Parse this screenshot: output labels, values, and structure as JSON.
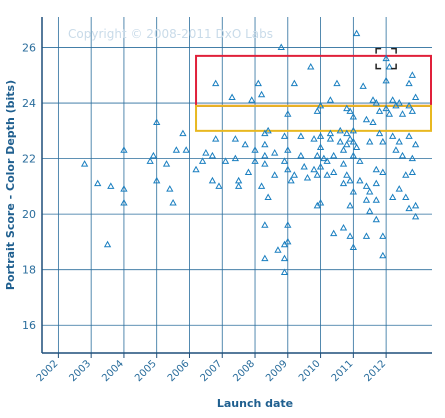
{
  "watermark": "Copyright © 2008-2011 DxO Labs",
  "colors": {
    "background": "#ffffff",
    "grid": "#2a6d9c",
    "marker": "#1a7fc0",
    "axis": "#1f4f7a",
    "highlight_red": "#e0203a",
    "highlight_yellow": "#e8b820",
    "selection_box": "#222222"
  },
  "chart_data": {
    "type": "scatter",
    "title": "",
    "xlabel": "Launch date",
    "ylabel": "Portrait Score - Color Depth (bits)",
    "x_tick_labels": [
      "2002",
      "2003",
      "2004",
      "2005",
      "2006",
      "2007",
      "2008",
      "2009",
      "2010",
      "2011",
      "2012"
    ],
    "y_tick_labels": [
      "16",
      "18",
      "20",
      "22",
      "24",
      "26"
    ],
    "xlim": [
      2001.5,
      2013.4
    ],
    "ylim": [
      15,
      27.1
    ],
    "grid": true,
    "marker": "open-triangle",
    "points": [
      [
        2002.8,
        21.8
      ],
      [
        2003.2,
        21.1
      ],
      [
        2003.5,
        18.9
      ],
      [
        2003.6,
        21.0
      ],
      [
        2004.0,
        22.3
      ],
      [
        2004.0,
        20.9
      ],
      [
        2004.0,
        20.4
      ],
      [
        2004.8,
        21.9
      ],
      [
        2004.9,
        22.1
      ],
      [
        2005.0,
        23.3
      ],
      [
        2005.0,
        21.2
      ],
      [
        2005.3,
        21.8
      ],
      [
        2005.4,
        20.9
      ],
      [
        2005.5,
        20.4
      ],
      [
        2005.6,
        22.3
      ],
      [
        2005.8,
        22.9
      ],
      [
        2005.9,
        22.3
      ],
      [
        2006.2,
        21.6
      ],
      [
        2006.4,
        21.9
      ],
      [
        2006.5,
        22.2
      ],
      [
        2006.7,
        22.1
      ],
      [
        2006.7,
        21.2
      ],
      [
        2006.8,
        24.7
      ],
      [
        2006.8,
        22.7
      ],
      [
        2006.9,
        21.0
      ],
      [
        2007.1,
        21.9
      ],
      [
        2007.3,
        24.2
      ],
      [
        2007.4,
        22.7
      ],
      [
        2007.4,
        22.0
      ],
      [
        2007.5,
        21.2
      ],
      [
        2007.5,
        21.0
      ],
      [
        2007.7,
        22.5
      ],
      [
        2007.8,
        21.5
      ],
      [
        2007.9,
        24.1
      ],
      [
        2008.0,
        22.3
      ],
      [
        2008.0,
        21.9
      ],
      [
        2008.1,
        24.7
      ],
      [
        2008.2,
        24.3
      ],
      [
        2008.2,
        21.0
      ],
      [
        2008.3,
        22.9
      ],
      [
        2008.3,
        22.5
      ],
      [
        2008.3,
        22.1
      ],
      [
        2008.3,
        21.8
      ],
      [
        2008.3,
        19.6
      ],
      [
        2008.3,
        18.4
      ],
      [
        2008.4,
        23.0
      ],
      [
        2008.4,
        20.6
      ],
      [
        2008.6,
        22.2
      ],
      [
        2008.6,
        21.4
      ],
      [
        2008.7,
        18.7
      ],
      [
        2008.8,
        26.0
      ],
      [
        2008.9,
        22.8
      ],
      [
        2008.9,
        21.9
      ],
      [
        2008.9,
        18.9
      ],
      [
        2008.9,
        18.4
      ],
      [
        2008.9,
        17.9
      ],
      [
        2009.0,
        23.6
      ],
      [
        2009.0,
        22.3
      ],
      [
        2009.0,
        21.6
      ],
      [
        2009.0,
        19.6
      ],
      [
        2009.0,
        19.0
      ],
      [
        2009.1,
        21.2
      ],
      [
        2009.2,
        24.7
      ],
      [
        2009.2,
        21.4
      ],
      [
        2009.4,
        22.8
      ],
      [
        2009.4,
        22.1
      ],
      [
        2009.5,
        21.7
      ],
      [
        2009.6,
        21.3
      ],
      [
        2009.7,
        25.3
      ],
      [
        2009.8,
        22.7
      ],
      [
        2009.8,
        21.6
      ],
      [
        2009.9,
        23.7
      ],
      [
        2009.9,
        22.1
      ],
      [
        2009.9,
        21.4
      ],
      [
        2009.9,
        20.3
      ],
      [
        2010.0,
        23.9
      ],
      [
        2010.0,
        22.8
      ],
      [
        2010.0,
        22.4
      ],
      [
        2010.0,
        21.7
      ],
      [
        2010.0,
        20.4
      ],
      [
        2010.1,
        22.0
      ],
      [
        2010.2,
        21.9
      ],
      [
        2010.2,
        21.4
      ],
      [
        2010.3,
        24.1
      ],
      [
        2010.3,
        22.9
      ],
      [
        2010.3,
        22.7
      ],
      [
        2010.4,
        22.1
      ],
      [
        2010.4,
        21.5
      ],
      [
        2010.4,
        19.3
      ],
      [
        2010.5,
        24.7
      ],
      [
        2010.6,
        23.0
      ],
      [
        2010.6,
        22.6
      ],
      [
        2010.7,
        22.3
      ],
      [
        2010.7,
        21.8
      ],
      [
        2010.7,
        21.1
      ],
      [
        2010.7,
        19.5
      ],
      [
        2010.8,
        23.8
      ],
      [
        2010.8,
        22.9
      ],
      [
        2010.8,
        22.5
      ],
      [
        2010.8,
        21.4
      ],
      [
        2010.9,
        23.7
      ],
      [
        2010.9,
        22.7
      ],
      [
        2010.9,
        21.2
      ],
      [
        2010.9,
        20.3
      ],
      [
        2010.9,
        19.2
      ],
      [
        2011.0,
        23.5
      ],
      [
        2011.0,
        23.0
      ],
      [
        2011.0,
        22.6
      ],
      [
        2011.0,
        22.1
      ],
      [
        2011.0,
        20.8
      ],
      [
        2011.0,
        18.8
      ],
      [
        2011.1,
        26.5
      ],
      [
        2011.1,
        22.4
      ],
      [
        2011.2,
        21.9
      ],
      [
        2011.2,
        21.2
      ],
      [
        2011.3,
        24.6
      ],
      [
        2011.4,
        23.4
      ],
      [
        2011.4,
        21.0
      ],
      [
        2011.4,
        20.5
      ],
      [
        2011.4,
        19.2
      ],
      [
        2011.5,
        22.6
      ],
      [
        2011.5,
        20.8
      ],
      [
        2011.5,
        20.1
      ],
      [
        2011.6,
        24.1
      ],
      [
        2011.6,
        23.3
      ],
      [
        2011.7,
        24.0
      ],
      [
        2011.7,
        21.6
      ],
      [
        2011.7,
        21.1
      ],
      [
        2011.7,
        20.5
      ],
      [
        2011.7,
        19.8
      ],
      [
        2011.8,
        23.7
      ],
      [
        2011.8,
        22.9
      ],
      [
        2011.9,
        22.6
      ],
      [
        2011.9,
        21.5
      ],
      [
        2011.9,
        19.2
      ],
      [
        2011.9,
        18.5
      ],
      [
        2012.0,
        25.6
      ],
      [
        2012.0,
        24.8
      ],
      [
        2012.0,
        23.8
      ],
      [
        2012.1,
        25.3
      ],
      [
        2012.1,
        23.6
      ],
      [
        2012.2,
        24.1
      ],
      [
        2012.2,
        22.8
      ],
      [
        2012.2,
        20.6
      ],
      [
        2012.3,
        23.9
      ],
      [
        2012.3,
        22.3
      ],
      [
        2012.4,
        24.0
      ],
      [
        2012.4,
        22.6
      ],
      [
        2012.4,
        20.9
      ],
      [
        2012.5,
        23.6
      ],
      [
        2012.5,
        22.1
      ],
      [
        2012.6,
        21.4
      ],
      [
        2012.7,
        24.7
      ],
      [
        2012.7,
        23.9
      ],
      [
        2012.7,
        22.8
      ],
      [
        2012.7,
        20.2
      ],
      [
        2012.8,
        25.0
      ],
      [
        2012.8,
        23.7
      ],
      [
        2012.9,
        24.2
      ],
      [
        2012.9,
        22.5
      ],
      [
        2012.9,
        20.3
      ],
      [
        2012.9,
        19.9
      ],
      [
        2012.6,
        20.6
      ],
      [
        2012.8,
        21.5
      ],
      [
        2012.8,
        22.0
      ]
    ],
    "highlights": [
      {
        "name": "red-region",
        "x": [
          2006.2,
          2013.4
        ],
        "y": [
          23.9,
          25.7
        ],
        "color": "#e0203a"
      },
      {
        "name": "yellow-region",
        "x": [
          2006.2,
          2013.4
        ],
        "y": [
          23.0,
          23.9
        ],
        "color": "#e8b820"
      }
    ],
    "selected_point": [
      2012.0,
      25.6
    ]
  }
}
